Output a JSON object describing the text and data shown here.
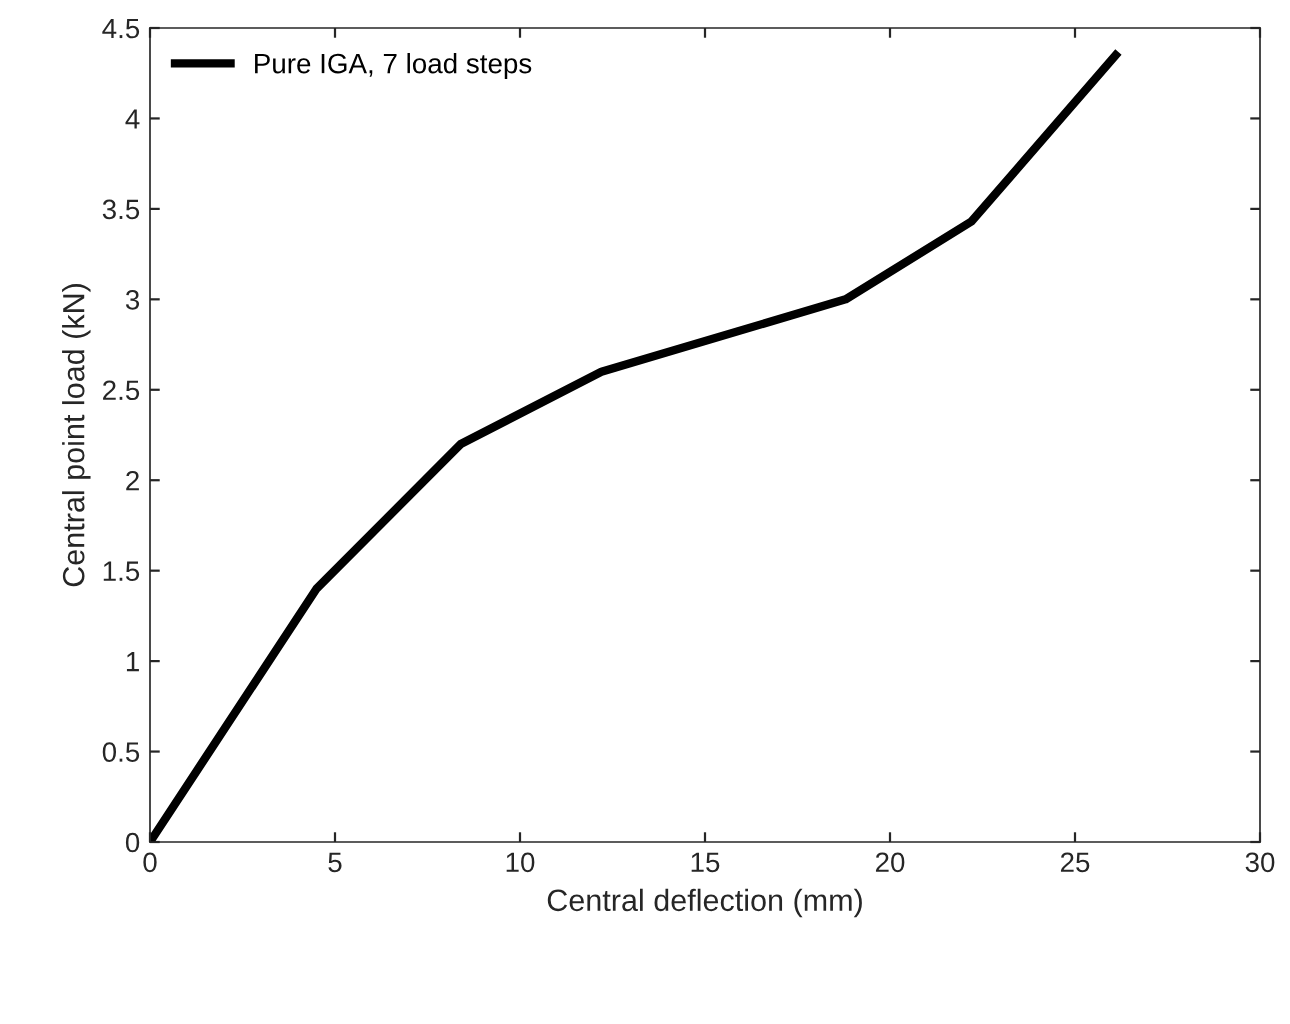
{
  "chart_data": {
    "type": "line",
    "xlabel": "Central deflection (mm)",
    "ylabel": "Central point load (kN)",
    "x": [
      0,
      4.5,
      8.4,
      12.2,
      18.8,
      22.2,
      26.1
    ],
    "series": [
      {
        "name": "Pure IGA, 7 load steps",
        "color": "#000000",
        "values": [
          0,
          1.4,
          2.2,
          2.6,
          3.0,
          3.43,
          4.35
        ]
      }
    ],
    "xlim": [
      0,
      30
    ],
    "xticks": [
      0,
      5,
      10,
      15,
      20,
      25,
      30
    ],
    "ylim": [
      0,
      4.5
    ],
    "yticks": [
      0,
      0.5,
      1,
      1.5,
      2,
      2.5,
      3,
      3.5,
      4,
      4.5
    ],
    "legend": "top left",
    "grid": false,
    "marker": "none",
    "line_style": "solid"
  }
}
